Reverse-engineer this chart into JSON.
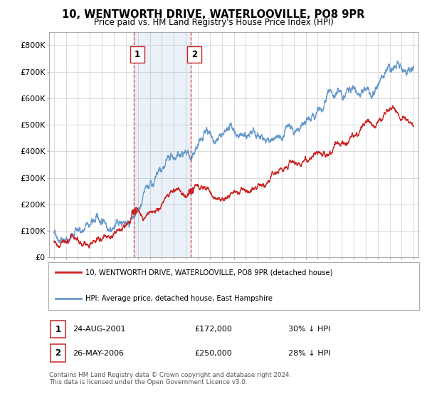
{
  "title": "10, WENTWORTH DRIVE, WATERLOOVILLE, PO8 9PR",
  "subtitle": "Price paid vs. HM Land Registry's House Price Index (HPI)",
  "legend_label_red": "10, WENTWORTH DRIVE, WATERLOOVILLE, PO8 9PR (detached house)",
  "legend_label_blue": "HPI: Average price, detached house, East Hampshire",
  "transaction1_label": "1",
  "transaction1_date": "24-AUG-2001",
  "transaction1_price": "£172,000",
  "transaction1_hpi": "30% ↓ HPI",
  "transaction2_label": "2",
  "transaction2_date": "26-MAY-2006",
  "transaction2_price": "£250,000",
  "transaction2_hpi": "28% ↓ HPI",
  "footer": "Contains HM Land Registry data © Crown copyright and database right 2024.\nThis data is licensed under the Open Government Licence v3.0.",
  "year_start": 1995,
  "year_end": 2025,
  "ylim_min": 0,
  "ylim_max": 850000,
  "yticks": [
    0,
    100000,
    200000,
    300000,
    400000,
    500000,
    600000,
    700000,
    800000
  ],
  "hpi_color": "#6699cc",
  "price_color": "#cc2222",
  "vline1_year": 2001.65,
  "vline2_year": 2006.4,
  "vline_color": "#cc2222",
  "background_color": "#ffffff",
  "plot_bg_color": "#ffffff",
  "grid_color": "#cccccc"
}
